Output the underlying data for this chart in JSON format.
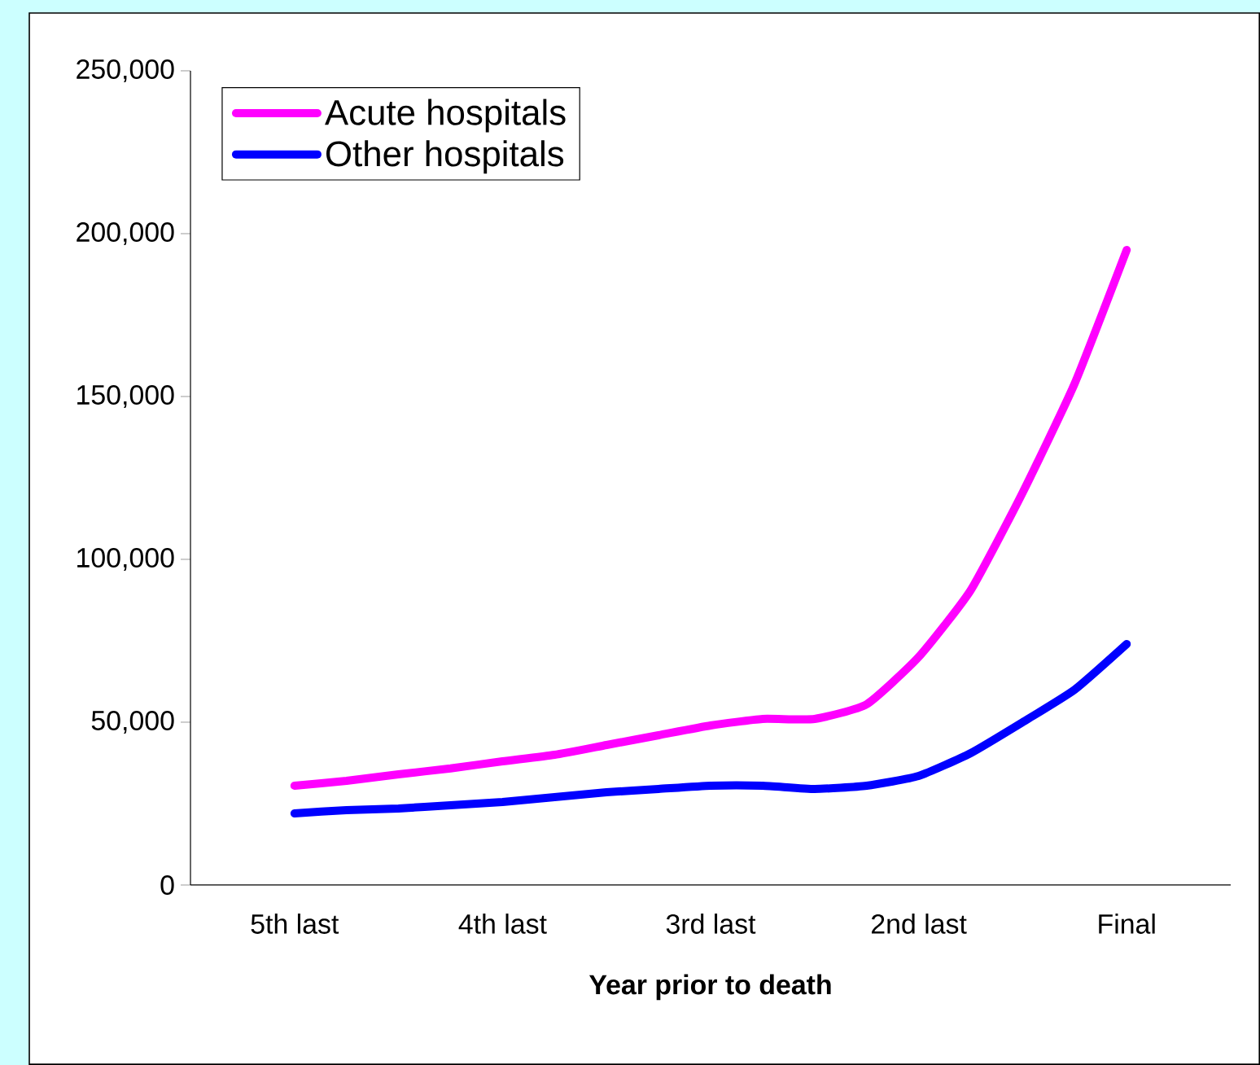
{
  "chart_data": {
    "type": "line",
    "xlabel": "Year prior to death",
    "categories": [
      "5th last",
      null,
      null,
      null,
      "4th last",
      null,
      null,
      null,
      "3rd last",
      null,
      null,
      null,
      "2nd last",
      null,
      null,
      null,
      "Final"
    ],
    "series": [
      {
        "name": "Acute hospitals",
        "color": "#ff00ff",
        "values": [
          30500,
          32000,
          34000,
          35800,
          38000,
          40000,
          43000,
          46000,
          49000,
          51000,
          51000,
          55500,
          70000,
          90500,
          120500,
          154000,
          195000
        ]
      },
      {
        "name": "Other hospitals",
        "color": "#0000ff",
        "values": [
          22000,
          23000,
          23500,
          24500,
          25500,
          27000,
          28500,
          29500,
          30500,
          30500,
          29500,
          30500,
          33500,
          40500,
          50000,
          60000,
          74000
        ]
      }
    ],
    "ylim": [
      0,
      250000
    ],
    "yticks": [
      {
        "value": 0,
        "label": "0"
      },
      {
        "value": 50000,
        "label": "50,000"
      },
      {
        "value": 100000,
        "label": "100,000"
      },
      {
        "value": 150000,
        "label": "150,000"
      },
      {
        "value": 200000,
        "label": "200,000"
      },
      {
        "value": 250000,
        "label": "250,000"
      }
    ],
    "grid": false,
    "legend": "top left",
    "marker": "none",
    "line_style": "solid"
  }
}
